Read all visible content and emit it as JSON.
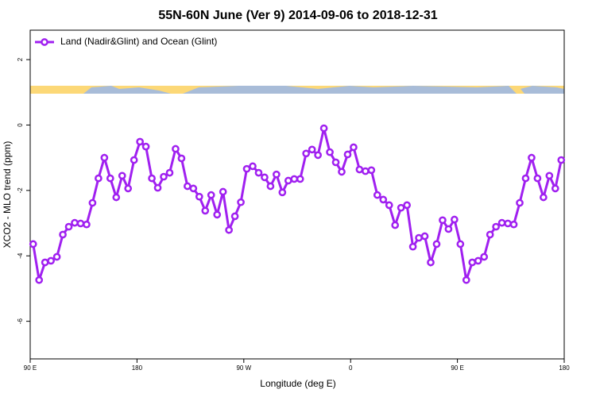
{
  "chart_data": {
    "type": "line",
    "title": "55N-60N June (Ver 9)   2014-09-06 to 2018-12-31",
    "x_label": "Longitude (deg E)",
    "y_label": "XCO2 - MLO trend (ppm)",
    "xlim": [
      90,
      540
    ],
    "ylim": [
      -7.15,
      2.9
    ],
    "xticks": [
      {
        "value": 90,
        "label": "90 E"
      },
      180,
      {
        "value": 270,
        "label": "90 W"
      },
      {
        "value": 360,
        "label": "0"
      },
      {
        "value": 450,
        "label": "90 E"
      },
      {
        "value": 540,
        "label": "180"
      }
    ],
    "yticks": [
      -6,
      -4,
      -2,
      0,
      2
    ],
    "legend": "topleft",
    "x": [
      92.5,
      97.5,
      102.5,
      107.5,
      112.5,
      117.5,
      122.5,
      127.5,
      132.5,
      137.5,
      142.5,
      147.5,
      152.5,
      157.5,
      162.5,
      167.5,
      172.5,
      177.5,
      182.5,
      187.5,
      192.5,
      197.5,
      202.5,
      207.5,
      212.5,
      217.5,
      222.5,
      227.5,
      232.5,
      237.5,
      242.5,
      247.5,
      252.5,
      257.5,
      262.5,
      267.5,
      272.5,
      277.5,
      282.5,
      287.5,
      292.5,
      297.5,
      302.5,
      307.5,
      312.5,
      317.5,
      322.5,
      327.5,
      332.5,
      337.5,
      342.5,
      347.5,
      352.5,
      357.5,
      362.5,
      367.5,
      372.5,
      377.5,
      382.5,
      387.5,
      392.5,
      397.5,
      402.5,
      407.5,
      412.5,
      417.5,
      422.5,
      427.5,
      432.5,
      437.5,
      442.5,
      447.5,
      452.5,
      457.5,
      462.5,
      467.5,
      472.5,
      477.5,
      482.5,
      487.5,
      492.5,
      497.5,
      502.5,
      507.5,
      512.5,
      517.5,
      522.5,
      527.5,
      532.5,
      537.5
    ],
    "series": [
      {
        "name": "Land (Nadir&Glint) and Ocean (Glint)",
        "color": "#a020f0",
        "values": [
          -3.64,
          -4.74,
          -4.2,
          -4.15,
          -4.03,
          -3.35,
          -3.11,
          -2.99,
          -3.01,
          -3.04,
          -2.38,
          -1.63,
          -1.0,
          -1.63,
          -2.21,
          -1.55,
          -1.94,
          -1.07,
          -0.51,
          -0.66,
          -1.63,
          -1.92,
          -1.58,
          -1.46,
          -0.73,
          -1.02,
          -1.87,
          -1.94,
          -2.19,
          -2.62,
          -2.14,
          -2.74,
          -2.04,
          -3.21,
          -2.79,
          -2.36,
          -1.34,
          -1.26,
          -1.46,
          -1.6,
          -1.87,
          -1.51,
          -2.06,
          -1.7,
          -1.65,
          -1.65,
          -0.87,
          -0.75,
          -0.92,
          -0.1,
          -0.83,
          -1.14,
          -1.43,
          -0.9,
          -0.68,
          -1.36,
          -1.41,
          -1.38,
          -2.14,
          -2.28,
          -2.45,
          -3.06,
          -2.53,
          -2.45,
          -3.72,
          -3.45,
          -3.4,
          -4.2,
          -3.64,
          -2.91,
          -3.18,
          -2.89,
          -3.64,
          -4.74,
          -4.2,
          -4.15,
          -4.03,
          -3.35,
          -3.11,
          -2.99,
          -3.01,
          -3.04,
          -2.38,
          -1.63,
          -1.0,
          -1.63,
          -2.21,
          -1.55,
          -1.94,
          -1.07
        ]
      }
    ]
  }
}
